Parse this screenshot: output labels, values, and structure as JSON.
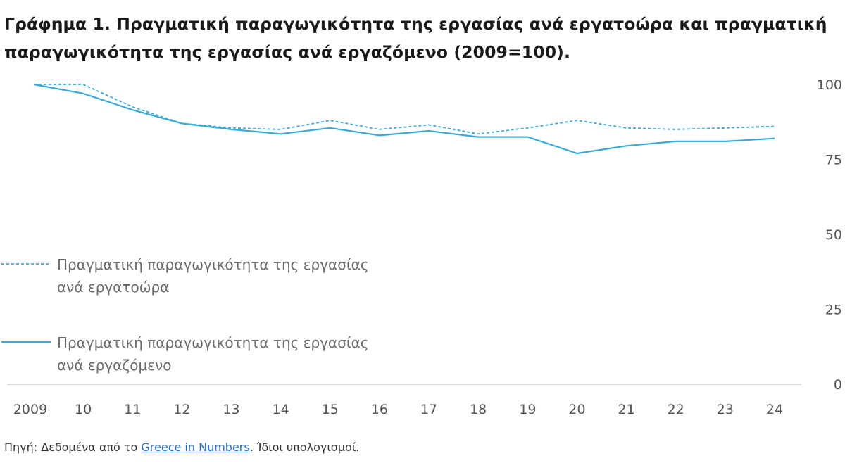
{
  "title": {
    "lead": "Γράφημα 1",
    "text": ". Πραγματική παραγωγικότητα της εργασίας ανά εργατοώρα και πραγματική παραγωγικότητα της εργασίας ανά εργαζόμενο (2009=100)."
  },
  "source": {
    "prefix": "Πηγή: Δεδομένα από το ",
    "link": "Greece in Numbers",
    "suffix": ". Ίδιοι υπολογισμοί."
  },
  "colors": {
    "series": "#3aaad6",
    "axis": "#cfcfcf",
    "tick": "#555555"
  },
  "chart_data": {
    "type": "line",
    "title": "Πραγματική παραγωγικότητα της εργασίας ανά εργατοώρα και πραγματική παραγωγικότητα της εργασίας ανά εργαζόμενο (2009=100)",
    "categories": [
      "2009",
      "10",
      "11",
      "12",
      "13",
      "14",
      "15",
      "16",
      "17",
      "18",
      "19",
      "20",
      "21",
      "22",
      "23",
      "24"
    ],
    "ylim": [
      0,
      100
    ],
    "yticks": [
      0,
      25,
      50,
      75,
      100
    ],
    "y_axis_side": "right",
    "grid": false,
    "legend_position": "left",
    "series": [
      {
        "name": "Πραγματική παραγωγικότητα της εργασίας ανά εργατοώρα",
        "legend_lines": [
          "Πραγματική παραγωγικότητα της εργασίας",
          "ανά εργατοώρα"
        ],
        "style": "dashed",
        "values": [
          100,
          100,
          92.5,
          87,
          85.5,
          85,
          88,
          85,
          86.5,
          83.5,
          85.5,
          88,
          85.5,
          85,
          85.5,
          86
        ]
      },
      {
        "name": "Πραγματική παραγωγικότητα της εργασίας ανά εργαζόμενο",
        "legend_lines": [
          "Πραγματική παραγωγικότητα της εργασίας",
          "ανά εργαζόμενο"
        ],
        "style": "solid",
        "values": [
          100,
          97,
          91.5,
          87,
          85,
          83.5,
          85.5,
          83,
          84.5,
          82.5,
          82.5,
          77,
          79.5,
          81,
          81,
          82
        ]
      }
    ]
  }
}
